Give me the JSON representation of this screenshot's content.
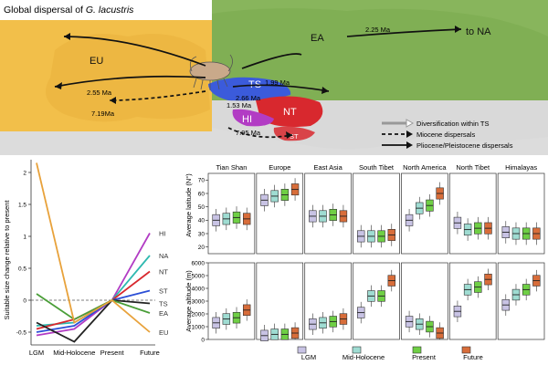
{
  "figure": {
    "title_prefix": "Global dispersal of ",
    "title_species": "G. lacustris"
  },
  "map": {
    "regions": {
      "EU": "EU",
      "EA": "EA",
      "NA": "to NA",
      "TS": "TS",
      "NT": "NT",
      "HI": "HI",
      "ST": "ST"
    },
    "dates": {
      "d225": "2.25 Ma",
      "d199": "1.99 Ma",
      "d255": "2.55 Ma",
      "d719": "7.19Ma",
      "d266": "2.66 Ma",
      "d153": "1.53 Ma",
      "d795": "7.95 Ma"
    },
    "legend": {
      "diversification": "Diversification within TS",
      "miocene": "Miocene dispersals",
      "plio": "Pliocene/Pleistocene dispersals"
    },
    "colors": {
      "EU": "#f2bf4a",
      "EA": "#88b55c",
      "TS": "#3b5bdb",
      "NT": "#d8282e",
      "HI": "#b23cc4"
    }
  },
  "line_chart": {
    "ylabel": "Suitable size change relative to present",
    "x_categories": [
      "LGM",
      "Mid-Holocene",
      "Present",
      "Future"
    ],
    "yticks": [
      "2",
      "1.5",
      "1",
      "0.5",
      "0",
      "-0.5"
    ],
    "ylim": [
      -0.7,
      2.2
    ],
    "series": [
      {
        "name": "HI",
        "color": "#b23cc4",
        "values": [
          -0.55,
          -0.45,
          0,
          1.05
        ]
      },
      {
        "name": "NA",
        "color": "#2eb9b0",
        "values": [
          -0.4,
          -0.35,
          0,
          0.7
        ]
      },
      {
        "name": "NT",
        "color": "#d8282e",
        "values": [
          -0.45,
          -0.3,
          0,
          0.45
        ]
      },
      {
        "name": "ST",
        "color": "#2c4fd6",
        "values": [
          -0.5,
          -0.4,
          0,
          0.15
        ]
      },
      {
        "name": "TS",
        "color": "#222222",
        "values": [
          -0.35,
          -0.65,
          0,
          -0.05
        ]
      },
      {
        "name": "EA",
        "color": "#4a9e38",
        "values": [
          0.1,
          -0.3,
          0,
          -0.2
        ]
      },
      {
        "name": "EU",
        "color": "#e8a23b",
        "values": [
          2.15,
          -0.35,
          0,
          -0.5
        ]
      }
    ]
  },
  "box_panels": {
    "groups": [
      "Tian Shan",
      "Europe",
      "East Asia",
      "South Tibet",
      "North America",
      "North Tibet",
      "Himalayas"
    ],
    "periods": [
      "LGM",
      "Mid-Holocene",
      "Present",
      "Future"
    ],
    "period_colors": [
      "#c8c3e4",
      "#9fdcd2",
      "#6fcf45",
      "#d86d3a"
    ],
    "latitude": {
      "ylabel": "Average latitude (N°)",
      "yticks": [
        "70",
        "60",
        "50",
        "40",
        "30",
        "20"
      ],
      "ylim": [
        15,
        75
      ],
      "medians": [
        [
          40,
          41,
          42,
          41
        ],
        [
          55,
          58,
          59,
          63
        ],
        [
          43,
          43,
          44,
          43
        ],
        [
          28,
          28,
          28,
          29
        ],
        [
          40,
          49,
          51,
          60
        ],
        [
          38,
          33,
          34,
          34
        ],
        [
          31,
          30,
          30,
          30
        ]
      ]
    },
    "altitude": {
      "ylabel": "Average altitude (m)",
      "yticks": [
        "6000",
        "5000",
        "4000",
        "3000",
        "2000",
        "1000",
        "0"
      ],
      "ylim": [
        0,
        6000
      ],
      "medians": [
        [
          1300,
          1600,
          1700,
          2300
        ],
        [
          300,
          400,
          400,
          500
        ],
        [
          1200,
          1300,
          1400,
          1600
        ],
        [
          2100,
          3400,
          3400,
          4600
        ],
        [
          1400,
          1200,
          1000,
          500
        ],
        [
          2200,
          3900,
          4100,
          4700
        ],
        [
          2700,
          3500,
          3900,
          4600
        ]
      ]
    },
    "legend_labels": [
      "LGM",
      "Mid-Holocene",
      "Present",
      "Future"
    ]
  }
}
